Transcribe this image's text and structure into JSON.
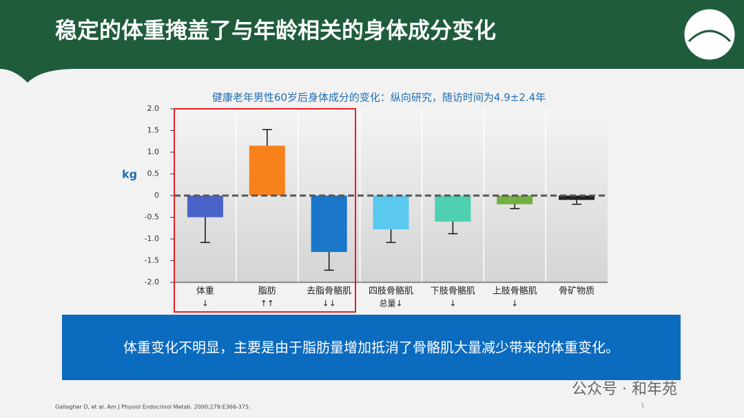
{
  "header": {
    "title": "稳定的体重掩盖了与年龄相关的身体成分变化"
  },
  "chart_data": {
    "type": "bar",
    "title": "健康老年男性60岁后身体成分的变化：纵向研究，随访时间为4.9±2.4年",
    "y_label": "kg",
    "categories": [
      "体重",
      "脂肪",
      "去脂骨骼肌",
      "四肢骨骼肌",
      "下肢骨骼肌",
      "上肢骨骼肌",
      "骨矿物质"
    ],
    "category_notes": [
      "↓",
      "↑↑",
      "↓↓",
      "总量↓",
      "↓",
      "↓",
      null
    ],
    "values": [
      -0.5,
      1.15,
      -1.3,
      -0.78,
      -0.6,
      -0.2,
      -0.1
    ],
    "errors": [
      0.58,
      0.37,
      0.42,
      0.3,
      0.28,
      0.1,
      0.1
    ],
    "colors": [
      "#4a63c8",
      "#f7821c",
      "#1976c8",
      "#5bc8f0",
      "#4fd0b0",
      "#72b044",
      "#222222"
    ],
    "ylim": [
      -2,
      2
    ],
    "yticks": [
      {
        "value": 2,
        "label": "2.0"
      },
      1.5,
      {
        "value": 1,
        "label": "1.0"
      },
      0.5,
      0,
      -0.5,
      {
        "value": -1,
        "label": "-1.0"
      },
      -1.5,
      {
        "value": -2,
        "label": "-2.0"
      }
    ]
  },
  "callout": "体重变化不明显，主要是由于脂肪量增加抵消了骨骼肌大量减少带来的体重变化。",
  "footnote": "Gallagher D, et al. Am J Physiol Endocrinol Metab. 2000;279:E366-375.",
  "watermark": "公众号 · 和年苑",
  "page_number": "1"
}
